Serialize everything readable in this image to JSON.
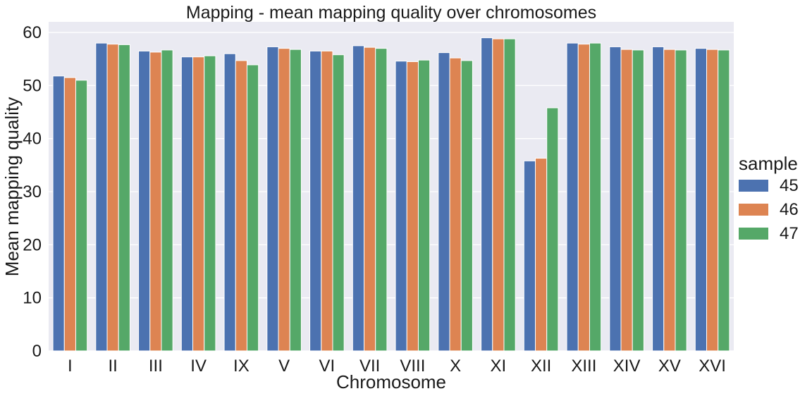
{
  "chart_data": {
    "type": "bar",
    "title": "Mapping - mean mapping quality over chromosomes",
    "xlabel": "Chromosome",
    "ylabel": "Mean mapping quality",
    "ylim": [
      0,
      62
    ],
    "yticks": [
      "0",
      "10",
      "20",
      "30",
      "40",
      "50",
      "60"
    ],
    "grid": true,
    "legend": {
      "title": "sample",
      "placement": "right"
    },
    "categories": [
      "I",
      "II",
      "III",
      "IV",
      "IX",
      "V",
      "VI",
      "VII",
      "VIII",
      "X",
      "XI",
      "XII",
      "XIII",
      "XIV",
      "XV",
      "XVI"
    ],
    "series": [
      {
        "name": "45",
        "color": "#4c72b0",
        "values": [
          51.8,
          58.0,
          56.5,
          55.4,
          56.0,
          57.3,
          56.5,
          57.5,
          54.6,
          56.2,
          59.0,
          35.8,
          58.0,
          57.3,
          57.3,
          57.0
        ]
      },
      {
        "name": "46",
        "color": "#dd8452",
        "values": [
          51.5,
          57.8,
          56.3,
          55.4,
          54.7,
          57.0,
          56.5,
          57.2,
          54.5,
          55.2,
          58.8,
          36.3,
          57.8,
          56.8,
          56.8,
          56.8
        ]
      },
      {
        "name": "47",
        "color": "#55a868",
        "values": [
          51.0,
          57.7,
          56.7,
          55.6,
          53.9,
          56.8,
          55.8,
          57.0,
          54.8,
          54.7,
          58.8,
          45.8,
          58.0,
          56.7,
          56.7,
          56.7
        ]
      }
    ],
    "colors": {
      "plot_background": "#eaeaf2",
      "grid": "#ffffff",
      "text": "#1a1a1a"
    }
  }
}
